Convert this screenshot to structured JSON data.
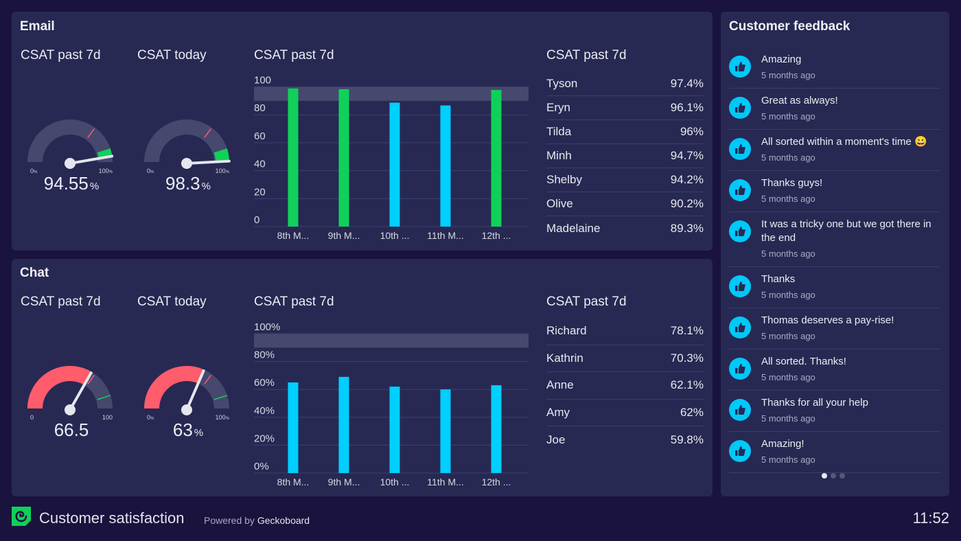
{
  "colors": {
    "background": "#19133d",
    "panel": "#272952",
    "green": "#0fd15a",
    "cyan": "#00cfff",
    "red": "#ff5c6c",
    "track": "#46486e",
    "band": "#46486e"
  },
  "email": {
    "title": "Email",
    "gauges": [
      {
        "title": "CSAT past 7d",
        "value": 94.55,
        "display": "94.55",
        "unit": "%",
        "min_label": "0",
        "max_label": "100",
        "min_unit": "%",
        "max_unit": "%",
        "red_threshold": 70,
        "green_threshold": 90,
        "fill": "green"
      },
      {
        "title": "CSAT today",
        "value": 98.3,
        "display": "98.3",
        "unit": "%",
        "min_label": "0",
        "max_label": "100",
        "min_unit": "%",
        "max_unit": "%",
        "red_threshold": 70,
        "green_threshold": 90,
        "fill": "green"
      }
    ],
    "chart_title": "CSAT past 7d",
    "leaderboard": {
      "title": "CSAT past 7d",
      "rows": [
        {
          "name": "Tyson",
          "value": "97.4%"
        },
        {
          "name": "Eryn",
          "value": "96.1%"
        },
        {
          "name": "Tilda",
          "value": "96%"
        },
        {
          "name": "Minh",
          "value": "94.7%"
        },
        {
          "name": "Shelby",
          "value": "94.2%"
        },
        {
          "name": "Olive",
          "value": "90.2%"
        },
        {
          "name": "Madelaine",
          "value": "89.3%"
        }
      ]
    }
  },
  "chat": {
    "title": "Chat",
    "gauges": [
      {
        "title": "CSAT past 7d",
        "value": 66.5,
        "display": "66.5",
        "unit": "",
        "min_label": "0",
        "max_label": "100",
        "min_unit": "",
        "max_unit": "",
        "red_threshold": 70,
        "green_threshold": 90,
        "fill": "red"
      },
      {
        "title": "CSAT today",
        "value": 63,
        "display": "63",
        "unit": "%",
        "min_label": "0",
        "max_label": "100",
        "min_unit": "%",
        "max_unit": "%",
        "red_threshold": 70,
        "green_threshold": 90,
        "fill": "red"
      }
    ],
    "chart_title": "CSAT past 7d",
    "leaderboard": {
      "title": "CSAT past 7d",
      "rows": [
        {
          "name": "Richard",
          "value": "78.1%"
        },
        {
          "name": "Kathrin",
          "value": "70.3%"
        },
        {
          "name": "Anne",
          "value": "62.1%"
        },
        {
          "name": "Amy",
          "value": "62%"
        },
        {
          "name": "Joe",
          "value": "59.8%"
        }
      ]
    }
  },
  "chart_data": [
    {
      "type": "bar",
      "title": "CSAT past 7d",
      "categories": [
        "8th M...",
        "9th M...",
        "10th ...",
        "11th M...",
        "12th ..."
      ],
      "values": [
        98.8,
        98.3,
        88.7,
        86.7,
        97.8
      ],
      "ylim": [
        0,
        100
      ],
      "yticks": [
        "0",
        "20",
        "40",
        "60",
        "80",
        "100"
      ],
      "target_band": [
        90,
        100
      ],
      "grid": true,
      "xlabel": "",
      "ylabel": ""
    },
    {
      "type": "bar",
      "title": "CSAT past 7d",
      "categories": [
        "8th M...",
        "9th M...",
        "10th ...",
        "11th M...",
        "12th ..."
      ],
      "values": [
        65,
        69,
        62,
        60,
        63
      ],
      "ylim": [
        0,
        100
      ],
      "yticks": [
        "0%",
        "20%",
        "40%",
        "60%",
        "80%",
        "100%"
      ],
      "target_band": [
        90,
        100
      ],
      "grid": true,
      "xlabel": "",
      "ylabel": ""
    }
  ],
  "feedback": {
    "title": "Customer feedback",
    "items": [
      {
        "text": "Amazing",
        "time": "5 months ago"
      },
      {
        "text": "Great as always!",
        "time": "5 months ago"
      },
      {
        "text": "All sorted within a moment's time 😀",
        "time": "5 months ago"
      },
      {
        "text": "Thanks guys!",
        "time": "5 months ago"
      },
      {
        "text": "It was a tricky one but we got there in the end",
        "time": "5 months ago"
      },
      {
        "text": "Thanks",
        "time": "5 months ago"
      },
      {
        "text": "Thomas deserves a pay-rise!",
        "time": "5 months ago"
      },
      {
        "text": "All sorted. Thanks!",
        "time": "5 months ago"
      },
      {
        "text": "Thanks for all your help",
        "time": "5 months ago"
      },
      {
        "text": "Amazing!",
        "time": "5 months ago"
      }
    ],
    "pages": 3,
    "active_page": 1
  },
  "footer": {
    "title": "Customer satisfaction",
    "powered_prefix": "Powered by",
    "powered_brand": "Geckoboard",
    "clock": "11:52"
  }
}
